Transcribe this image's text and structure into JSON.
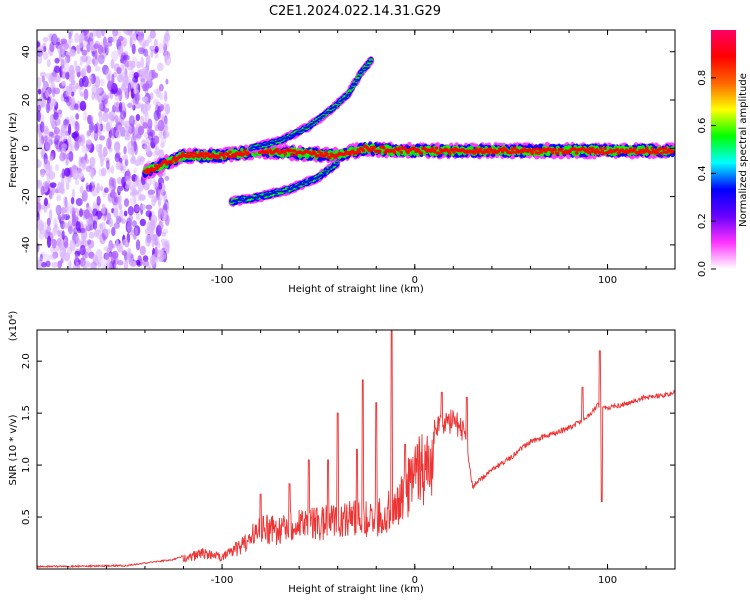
{
  "chart_data": [
    {
      "type": "heatmap",
      "title": "C2E1.2024.022.14.31.G29",
      "xlabel": "Height of straight line (km)",
      "ylabel": "Frequency (Hz)",
      "xlim": [
        -196,
        135
      ],
      "ylim": [
        -50,
        49
      ],
      "x_ticks": [
        -100,
        0,
        100
      ],
      "y_ticks": [
        -40,
        -20,
        0,
        20,
        40
      ],
      "colorbar": {
        "label": "Normalized spectral amplitude",
        "range": [
          0.0,
          1.0
        ],
        "ticks": [
          0.0,
          0.2,
          0.4,
          0.6,
          0.8
        ],
        "colors": [
          "#ffffff",
          "#ff33ff",
          "#6600ff",
          "#0000ff",
          "#00ffff",
          "#00ff00",
          "#ffff00",
          "#ff6600",
          "#ff0000",
          "#ff0066"
        ]
      },
      "features": [
        {
          "name": "noise",
          "x_range": [
            -196,
            -128
          ],
          "y_range": [
            -50,
            49
          ]
        },
        {
          "name": "main",
          "points": [
            [
              -140,
              -10
            ],
            [
              -120,
              -3
            ],
            [
              -100,
              -3
            ],
            [
              -80,
              -1
            ],
            [
              -60,
              -2
            ],
            [
              -40,
              -3
            ],
            [
              -25,
              0
            ],
            [
              -10,
              -1
            ],
            [
              0,
              -1
            ],
            [
              20,
              -1
            ],
            [
              60,
              -1
            ],
            [
              80,
              -1
            ],
            [
              100,
              -1
            ],
            [
              134,
              -1
            ]
          ]
        },
        {
          "name": "upper",
          "points": [
            [
              -85,
              0
            ],
            [
              -70,
              3
            ],
            [
              -55,
              9
            ],
            [
              -45,
              15
            ],
            [
              -35,
              22
            ],
            [
              -28,
              31
            ],
            [
              -22,
              37
            ]
          ]
        },
        {
          "name": "lower",
          "points": [
            [
              -95,
              -22
            ],
            [
              -80,
              -20
            ],
            [
              -65,
              -17
            ],
            [
              -50,
              -12
            ],
            [
              -40,
              -6
            ]
          ]
        }
      ]
    },
    {
      "type": "line",
      "xlabel": "Height of straight line (km)",
      "ylabel": "SNR (10 * v/v)",
      "y_multiplier": "(x10⁴)",
      "xlim": [
        -196,
        135
      ],
      "ylim": [
        0,
        2.3
      ],
      "x_ticks": [
        -100,
        0,
        100
      ],
      "y_ticks": [
        0.5,
        1.0,
        1.5,
        2.0
      ],
      "color": "#ee3333",
      "envelope": {
        "x": [
          -196,
          -150,
          -125,
          -110,
          -100,
          -90,
          -80,
          -70,
          -60,
          -50,
          -40,
          -30,
          -20,
          -15,
          -10,
          -5,
          0,
          5,
          10,
          20,
          25,
          30,
          40,
          50,
          60,
          70,
          80,
          90,
          95,
          100,
          110,
          120,
          130,
          134
        ],
        "y": [
          0.03,
          0.04,
          0.1,
          0.2,
          0.15,
          0.3,
          0.55,
          0.5,
          0.6,
          0.6,
          0.65,
          0.7,
          0.65,
          0.75,
          0.8,
          1.0,
          1.3,
          1.35,
          1.45,
          1.55,
          1.45,
          0.82,
          0.98,
          1.1,
          1.25,
          1.32,
          1.38,
          1.5,
          1.6,
          1.57,
          1.62,
          1.68,
          1.7,
          1.73
        ]
      },
      "spikes": [
        {
          "x": -80,
          "y": 0.72
        },
        {
          "x": -65,
          "y": 0.82
        },
        {
          "x": -55,
          "y": 1.05
        },
        {
          "x": -45,
          "y": 1.05
        },
        {
          "x": -40,
          "y": 1.5
        },
        {
          "x": -30,
          "y": 1.15
        },
        {
          "x": -27,
          "y": 1.82
        },
        {
          "x": -20,
          "y": 1.6
        },
        {
          "x": -12,
          "y": 2.3
        },
        {
          "x": -5,
          "y": 1.2
        },
        {
          "x": 14,
          "y": 1.7
        },
        {
          "x": 27,
          "y": 1.65
        },
        {
          "x": 87,
          "y": 1.75
        },
        {
          "x": 96,
          "y": 2.1
        },
        {
          "x": 97,
          "y": 0.65
        }
      ]
    }
  ]
}
